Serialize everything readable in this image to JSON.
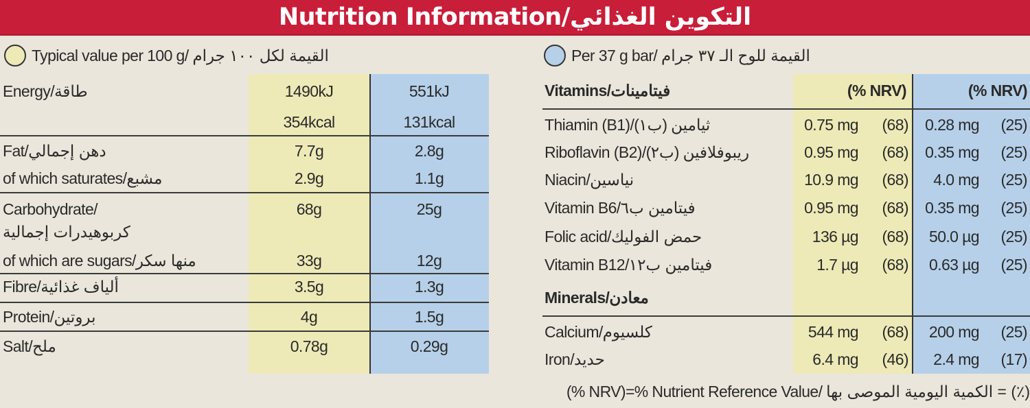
{
  "header": {
    "title": "Nutrition Information/التكوين الغذائي"
  },
  "colors": {
    "banner": "#c81e3a",
    "per100g": "#eeeab8",
    "perBar": "#b5d0e8",
    "background": "#ebe6dc"
  },
  "left": {
    "legend": "Typical value per 100 g/ القيمة لكل ١٠٠ جرام",
    "rows": [
      {
        "label": "Energy/طاقة",
        "v100": "1490kJ",
        "vbar": "551kJ"
      },
      {
        "label": "",
        "v100": "354kcal",
        "vbar": "131kcal"
      },
      {
        "label": "Fat/دهن إجمالي",
        "v100": "7.7g",
        "vbar": "2.8g"
      },
      {
        "label": "of which saturates/مشبع",
        "v100": "2.9g",
        "vbar": "1.1g"
      },
      {
        "label": "Carbohydrate/",
        "v100": "68g",
        "vbar": "25g"
      },
      {
        "label": "كربوهيدرات إجمالية",
        "v100": "",
        "vbar": ""
      },
      {
        "label": "of which are sugars/منها سكر",
        "v100": "33g",
        "vbar": "12g"
      },
      {
        "label": "Fibre/ألياف غذائية",
        "v100": "3.5g",
        "vbar": "1.3g"
      },
      {
        "label": "Protein/بروتين",
        "v100": "4g",
        "vbar": "1.5g"
      },
      {
        "label": "Salt/ملح",
        "v100": "0.78g",
        "vbar": "0.29g"
      }
    ]
  },
  "right": {
    "legend": "Per 37 g bar/ القيمة للوح الـ ٣٧ جرام",
    "vitamins_heading": "Vitamins/فيتامينات",
    "nrv_header": "(% NRV)",
    "minerals_heading": "Minerals/معادن",
    "rows": [
      {
        "label": "Thiamin (B1)/(ب١) ثيامين",
        "v100": "0.75 mg",
        "n100": "(68)",
        "vbar": "0.28 mg",
        "nbar": "(25)"
      },
      {
        "label": "Riboflavin (B2)/(ب٢) ريبوفلافين",
        "v100": "0.95 mg",
        "n100": "(68)",
        "vbar": "0.35 mg",
        "nbar": "(25)"
      },
      {
        "label": "Niacin/نياسين",
        "v100": "10.9 mg",
        "n100": "(68)",
        "vbar": "4.0 mg",
        "nbar": "(25)"
      },
      {
        "label": "Vitamin B6/فيتامين ب٦",
        "v100": "0.95 mg",
        "n100": "(68)",
        "vbar": "0.35 mg",
        "nbar": "(25)"
      },
      {
        "label": "Folic acid/حمض الفوليك",
        "v100": "136 µg",
        "n100": "(68)",
        "vbar": "50.0 µg",
        "nbar": "(25)"
      },
      {
        "label": "Vitamin B12/فيتامين ب١٢",
        "v100": "1.7 µg",
        "n100": "(68)",
        "vbar": "0.63 µg",
        "nbar": "(25)"
      },
      {
        "label": "Calcium/كلسيوم",
        "v100": "544 mg",
        "n100": "(68)",
        "vbar": "200 mg",
        "nbar": "(25)"
      },
      {
        "label": "Iron/حديد",
        "v100": "6.4 mg",
        "n100": "(46)",
        "vbar": "2.4 mg",
        "nbar": "(17)"
      }
    ]
  },
  "footer": "(% NRV)=% Nutrient Reference Value/ الكمية اليومية الموصى بها = (٪)"
}
